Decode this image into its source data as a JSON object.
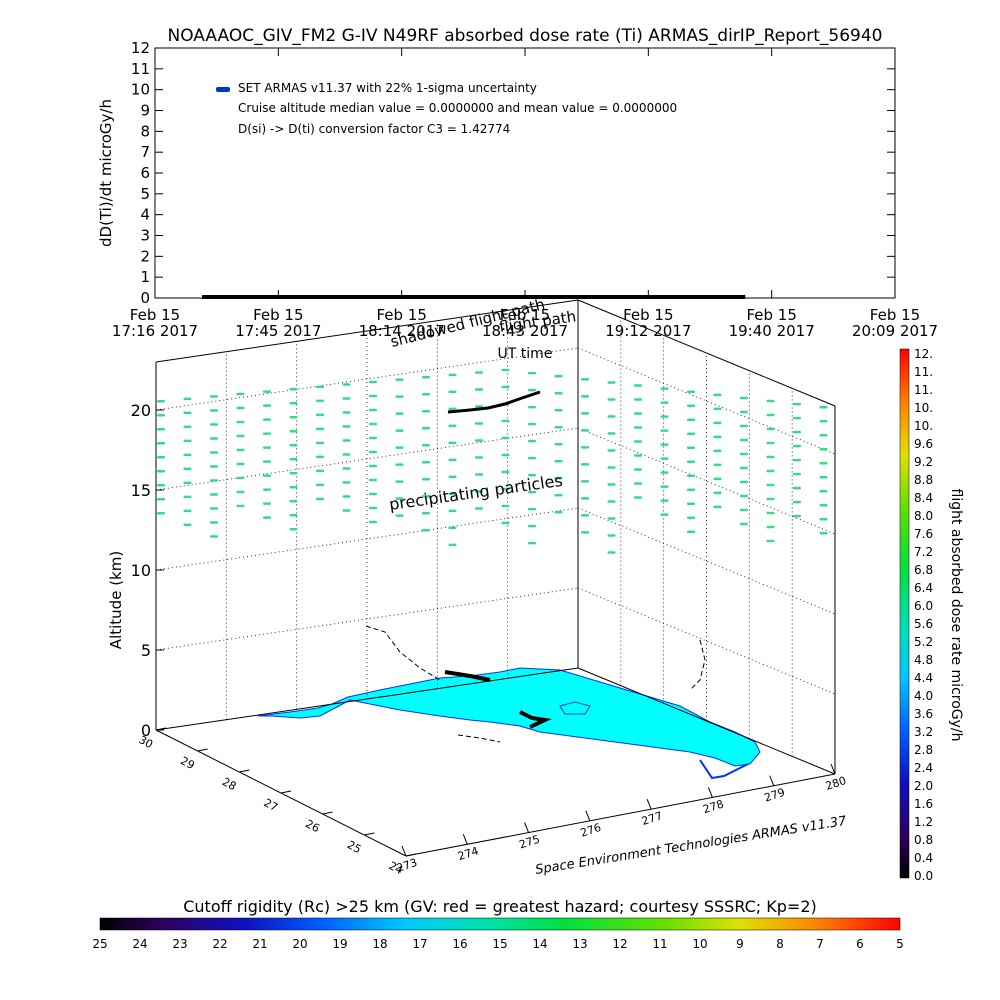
{
  "page": {
    "title": "NOAAAOC_GIV_FM2 G-IV    N49RF  absorbed dose rate (Ti) ARMAS_dirIP_Report_56940",
    "credit": "Space Environment Technologies ARMAS v11.37"
  },
  "chart_data": [
    {
      "type": "line",
      "name": "dose-rate-timeseries",
      "ylabel": "dD(Ti)/dt microGy/h",
      "xlabel": "UT time",
      "ylim": [
        0,
        12
      ],
      "yticks": [
        0,
        1,
        2,
        3,
        4,
        5,
        6,
        7,
        8,
        9,
        10,
        11,
        12
      ],
      "xticks": [
        {
          "date": "Feb 15",
          "time": "17:16 2017"
        },
        {
          "date": "Feb 15",
          "time": "17:45 2017"
        },
        {
          "date": "Feb 15",
          "time": "18:14 2017"
        },
        {
          "date": "Feb 15",
          "time": "18:43 2017"
        },
        {
          "date": "Feb 15",
          "time": "19:12 2017"
        },
        {
          "date": "Feb 15",
          "time": "19:40 2017"
        },
        {
          "date": "Feb 15",
          "time": "20:09 2017"
        }
      ],
      "xlim": [
        "17:16",
        "20:09"
      ],
      "series": [
        {
          "name": "SET ARMAS v11.37 with 22% 1-sigma uncertainty",
          "color": "#0000ff",
          "x": [
            "17:27",
            "19:34"
          ],
          "y": [
            0,
            0
          ]
        }
      ],
      "legend": [
        "SET ARMAS v11.37 with 22% 1-sigma uncertainty",
        "Cruise altitude median value = 0.0000000 and mean value = 0.0000000",
        "D(si) -> D(ti) conversion factor C3 = 1.42774"
      ],
      "legend_position": "top-left"
    },
    {
      "type": "scatter",
      "name": "3d-flight-path",
      "zlabel": "Altitude (km)",
      "zlim": [
        0,
        23
      ],
      "zticks": [
        0,
        5,
        10,
        15,
        20
      ],
      "lat_ticks": [
        30,
        29,
        28,
        27,
        26,
        25,
        24
      ],
      "lon_ticks": [
        273,
        274,
        275,
        276,
        277,
        278,
        279,
        280
      ],
      "annotations": [
        "flight path",
        "shadowed flight path",
        "precipitating particles"
      ],
      "grid": true
    },
    {
      "type": "heatmap",
      "name": "dose-colorbar",
      "label": "flight absorbed dose rate microGy/h",
      "ticks": [
        "0.0",
        "0.4",
        "0.8",
        "1.2",
        "1.6",
        "2.0",
        "2.4",
        "2.8",
        "3.2",
        "3.6",
        "4.0",
        "4.4",
        "4.8",
        "5.2",
        "5.6",
        "6.0",
        "6.4",
        "6.8",
        "7.2",
        "7.6",
        "8.0",
        "8.4",
        "8.8",
        "9.2",
        "9.6",
        "10.",
        "10.",
        "11.",
        "11.",
        "12."
      ]
    },
    {
      "type": "heatmap",
      "name": "rigidity-colorbar",
      "label": "Cutoff rigidity (Rc) >25 km (GV: red = greatest hazard; courtesy SSSRC; Kp=2)",
      "ticks": [
        "25",
        "24",
        "23",
        "22",
        "21",
        "20",
        "19",
        "18",
        "17",
        "16",
        "15",
        "14",
        "13",
        "12",
        "11",
        "10",
        "9",
        "8",
        "7",
        "6",
        "5"
      ]
    }
  ],
  "colors": {
    "land": "#00ffff",
    "coast": "#0033ff",
    "particles": "#33dd88",
    "data_line": "#0000ff"
  }
}
